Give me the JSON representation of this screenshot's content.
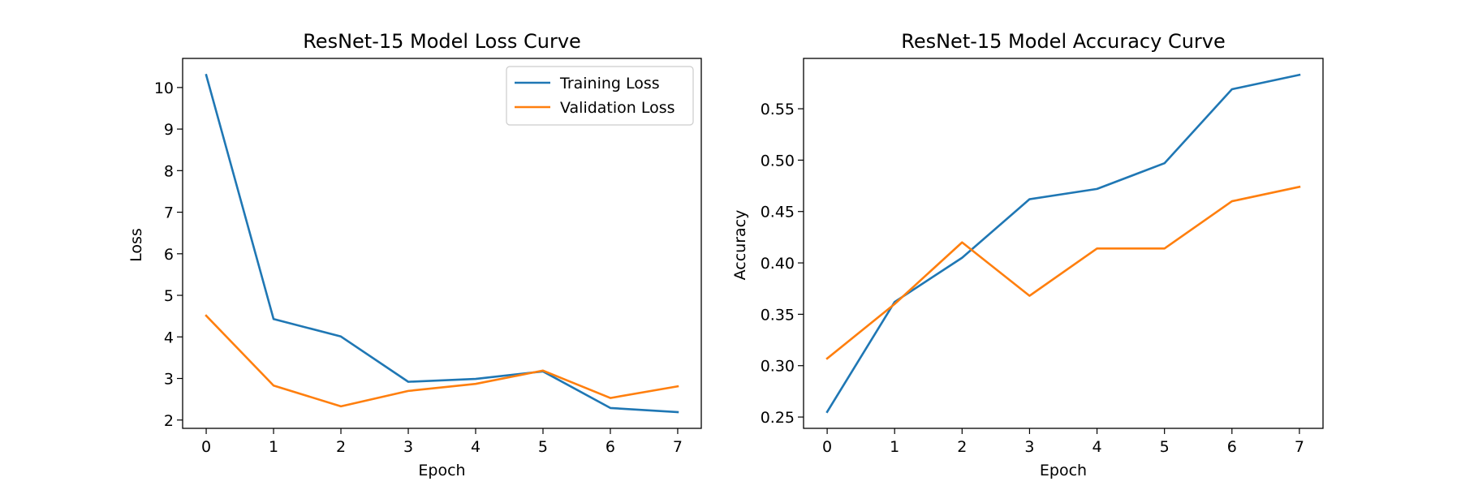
{
  "chart_data": [
    {
      "type": "line",
      "title": "ResNet-15 Model Loss Curve",
      "xlabel": "Epoch",
      "ylabel": "Loss",
      "x": [
        0,
        1,
        2,
        3,
        4,
        5,
        6,
        7
      ],
      "xlim": [
        -0.35,
        7.35
      ],
      "ylim": [
        1.8,
        10.7
      ],
      "xticks": [
        0,
        1,
        2,
        3,
        4,
        5,
        6,
        7
      ],
      "yticks": [
        2,
        3,
        4,
        5,
        6,
        7,
        8,
        9,
        10
      ],
      "grid": false,
      "legend": "top-right",
      "series": [
        {
          "name": "Training Loss",
          "color": "#1f77b4",
          "values": [
            10.3,
            4.43,
            4.01,
            2.92,
            2.99,
            3.17,
            2.29,
            2.19
          ]
        },
        {
          "name": "Validation Loss",
          "color": "#ff7f0e",
          "values": [
            4.51,
            2.83,
            2.33,
            2.7,
            2.87,
            3.19,
            2.53,
            2.81
          ]
        }
      ]
    },
    {
      "type": "line",
      "title": "ResNet-15 Model Accuracy Curve",
      "xlabel": "Epoch",
      "ylabel": "Accuracy",
      "x": [
        0,
        1,
        2,
        3,
        4,
        5,
        6,
        7
      ],
      "xlim": [
        -0.35,
        7.35
      ],
      "ylim": [
        0.239,
        0.599
      ],
      "xticks": [
        0,
        1,
        2,
        3,
        4,
        5,
        6,
        7
      ],
      "yticks": [
        0.25,
        0.3,
        0.35,
        0.4,
        0.45,
        0.5,
        0.55
      ],
      "ytick_labels": [
        "0.25",
        "0.30",
        "0.35",
        "0.40",
        "0.45",
        "0.50",
        "0.55"
      ],
      "grid": false,
      "series": [
        {
          "color": "#1f77b4",
          "values": [
            0.255,
            0.362,
            0.405,
            0.462,
            0.472,
            0.497,
            0.569,
            0.583
          ]
        },
        {
          "color": "#ff7f0e",
          "values": [
            0.307,
            0.36,
            0.42,
            0.368,
            0.414,
            0.414,
            0.46,
            0.474
          ]
        }
      ]
    }
  ]
}
